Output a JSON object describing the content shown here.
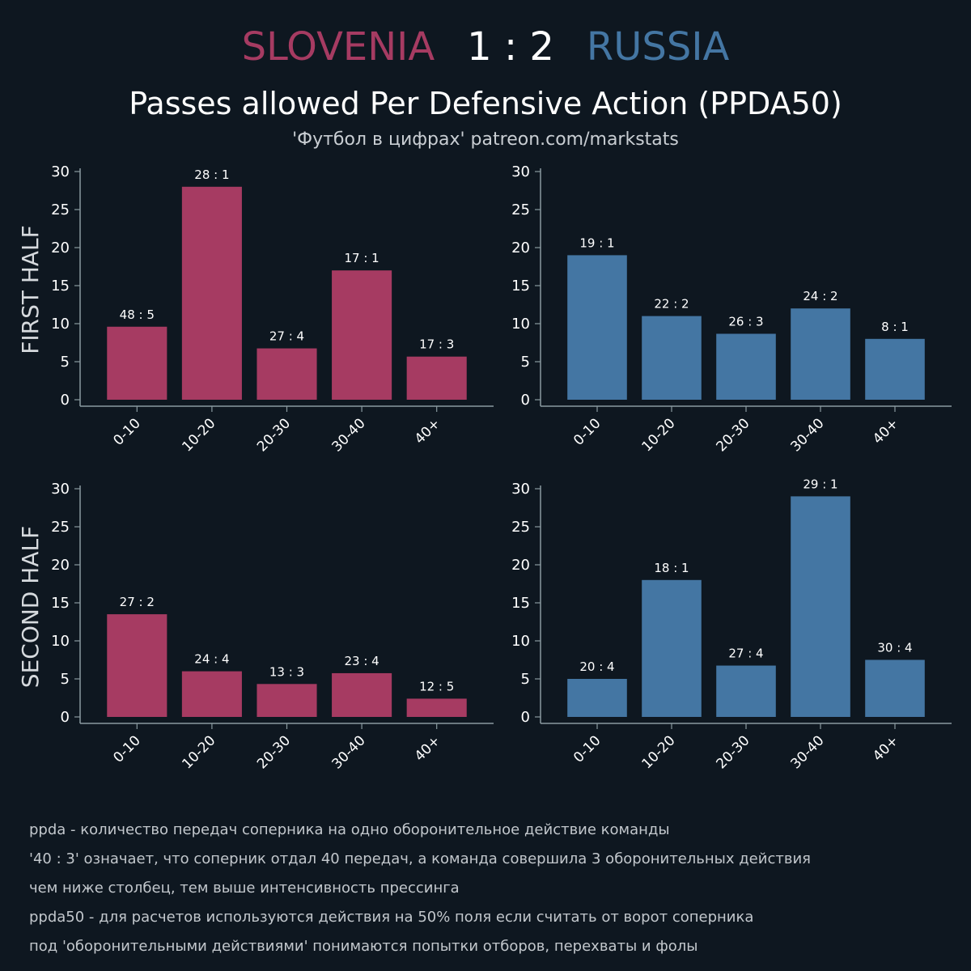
{
  "match": {
    "home_team": "SLOVENIA",
    "score": "1 : 2",
    "away_team": "RUSSIA"
  },
  "title": "Passes allowed Per Defensive Action (PPDA50)",
  "subtitle": "'Футбол в цифрах' patreon.com/markstats",
  "colors": {
    "background": "#0e1720",
    "home": "#a63b62",
    "away": "#4476a3",
    "axis": "#8a9aa0",
    "text": "#ffffff"
  },
  "row_labels": [
    "FIRST HALF",
    "SECOND HALF"
  ],
  "chart_data": [
    {
      "type": "bar",
      "team": "SLOVENIA",
      "half": "FIRST HALF",
      "categories": [
        "0-10",
        "10-20",
        "20-30",
        "30-40",
        "40+"
      ],
      "values": [
        9.6,
        28,
        6.75,
        17,
        5.67
      ],
      "data_labels": [
        "48 : 5",
        "28 : 1",
        "27 : 4",
        "17 : 1",
        "17 : 3"
      ],
      "yticks": [
        0,
        5,
        10,
        15,
        20,
        25,
        30
      ],
      "ylim": [
        0,
        30
      ],
      "color": "#a63b62"
    },
    {
      "type": "bar",
      "team": "RUSSIA",
      "half": "FIRST HALF",
      "categories": [
        "0-10",
        "10-20",
        "20-30",
        "30-40",
        "40+"
      ],
      "values": [
        19,
        11,
        8.67,
        12,
        8
      ],
      "data_labels": [
        "19 : 1",
        "22 : 2",
        "26 : 3",
        "24 : 2",
        "8 : 1"
      ],
      "yticks": [
        0,
        5,
        10,
        15,
        20,
        25,
        30
      ],
      "ylim": [
        0,
        30
      ],
      "color": "#4476a3"
    },
    {
      "type": "bar",
      "team": "SLOVENIA",
      "half": "SECOND HALF",
      "categories": [
        "0-10",
        "10-20",
        "20-30",
        "30-40",
        "40+"
      ],
      "values": [
        13.5,
        6,
        4.33,
        5.75,
        2.4
      ],
      "data_labels": [
        "27 : 2",
        "24 : 4",
        "13 : 3",
        "23 : 4",
        "12 : 5"
      ],
      "yticks": [
        0,
        5,
        10,
        15,
        20,
        25,
        30
      ],
      "ylim": [
        0,
        30
      ],
      "color": "#a63b62"
    },
    {
      "type": "bar",
      "team": "RUSSIA",
      "half": "SECOND HALF",
      "categories": [
        "0-10",
        "10-20",
        "20-30",
        "30-40",
        "40+"
      ],
      "values": [
        5,
        18,
        6.75,
        29,
        7.5
      ],
      "data_labels": [
        "20 : 4",
        "18 : 1",
        "27 : 4",
        "29 : 1",
        "30 : 4"
      ],
      "yticks": [
        0,
        5,
        10,
        15,
        20,
        25,
        30
      ],
      "ylim": [
        0,
        30
      ],
      "color": "#4476a3"
    }
  ],
  "notes": [
    "ppda - количество передач соперника на одно оборонительное действие команды",
    "'40 : 3' означает, что соперник отдал 40 передач, а команда совершила 3 оборонительных действия",
    "чем ниже столбец, тем выше интенсивность прессинга",
    "ppda50 - для расчетов используются действия на 50% поля если считать от ворот соперника",
    "под 'оборонительными действиями' понимаются попытки отборов, перехваты и фолы"
  ]
}
